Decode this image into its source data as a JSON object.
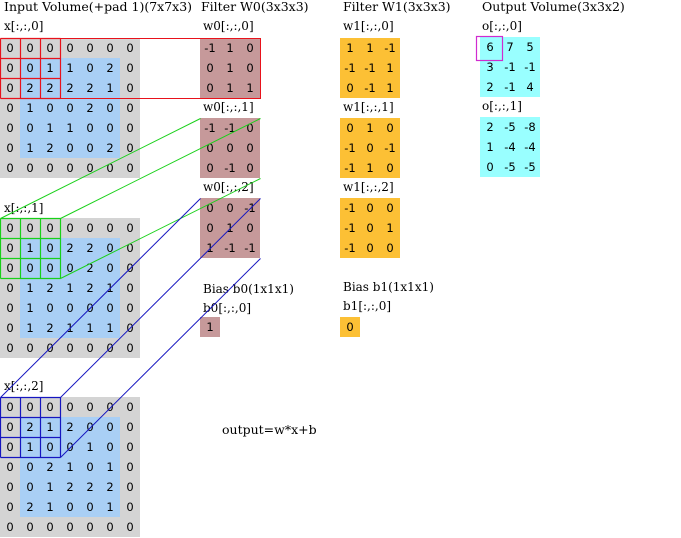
{
  "input": {
    "title": "Input Volume(+pad 1)(7x7x3)",
    "slices": [
      {
        "label": "x[:,:,0]",
        "values": [
          [
            0,
            0,
            0,
            0,
            0,
            0,
            0
          ],
          [
            0,
            0,
            1,
            1,
            0,
            2,
            0
          ],
          [
            0,
            2,
            2,
            2,
            2,
            1,
            0
          ],
          [
            0,
            1,
            0,
            0,
            2,
            0,
            0
          ],
          [
            0,
            0,
            1,
            1,
            0,
            0,
            0
          ],
          [
            0,
            1,
            2,
            0,
            0,
            2,
            0
          ],
          [
            0,
            0,
            0,
            0,
            0,
            0,
            0
          ]
        ]
      },
      {
        "label": "x[:,:,1]",
        "values": [
          [
            0,
            0,
            0,
            0,
            0,
            0,
            0
          ],
          [
            0,
            1,
            0,
            2,
            2,
            0,
            0
          ],
          [
            0,
            0,
            0,
            0,
            2,
            0,
            0
          ],
          [
            0,
            1,
            2,
            1,
            2,
            1,
            0
          ],
          [
            0,
            1,
            0,
            0,
            0,
            0,
            0
          ],
          [
            0,
            1,
            2,
            1,
            1,
            1,
            0
          ],
          [
            0,
            0,
            0,
            0,
            0,
            0,
            0
          ]
        ]
      },
      {
        "label": "x[:,:,2]",
        "values": [
          [
            0,
            0,
            0,
            0,
            0,
            0,
            0
          ],
          [
            0,
            2,
            1,
            2,
            0,
            0,
            0
          ],
          [
            0,
            1,
            0,
            0,
            1,
            0,
            0
          ],
          [
            0,
            0,
            2,
            1,
            0,
            1,
            0
          ],
          [
            0,
            0,
            1,
            2,
            2,
            2,
            0
          ],
          [
            0,
            2,
            1,
            0,
            0,
            1,
            0
          ],
          [
            0,
            0,
            0,
            0,
            0,
            0,
            0
          ]
        ]
      }
    ]
  },
  "filter_w0": {
    "title": "Filter W0(3x3x3)",
    "slices": [
      {
        "label": "w0[:,:,0]",
        "values": [
          [
            -1,
            1,
            0
          ],
          [
            0,
            1,
            0
          ],
          [
            0,
            1,
            1
          ]
        ]
      },
      {
        "label": "w0[:,:,1]",
        "values": [
          [
            -1,
            -1,
            0
          ],
          [
            0,
            0,
            0
          ],
          [
            0,
            -1,
            0
          ]
        ]
      },
      {
        "label": "w0[:,:,2]",
        "values": [
          [
            0,
            0,
            -1
          ],
          [
            0,
            1,
            0
          ],
          [
            1,
            -1,
            -1
          ]
        ]
      }
    ],
    "bias_title": "Bias b0(1x1x1)",
    "bias_label": "b0[:,:,0]",
    "bias_value": 1
  },
  "filter_w1": {
    "title": "Filter W1(3x3x3)",
    "slices": [
      {
        "label": "w1[:,:,0]",
        "values": [
          [
            1,
            1,
            -1
          ],
          [
            -1,
            -1,
            1
          ],
          [
            0,
            -1,
            1
          ]
        ]
      },
      {
        "label": "w1[:,:,1]",
        "values": [
          [
            0,
            1,
            0
          ],
          [
            -1,
            0,
            -1
          ],
          [
            -1,
            1,
            0
          ]
        ]
      },
      {
        "label": "w1[:,:,2]",
        "values": [
          [
            -1,
            0,
            0
          ],
          [
            -1,
            0,
            1
          ],
          [
            -1,
            0,
            0
          ]
        ]
      }
    ],
    "bias_title": "Bias b1(1x1x1)",
    "bias_label": "b1[:,:,0]",
    "bias_value": 0
  },
  "output": {
    "title": "Output Volume(3x3x2)",
    "slices": [
      {
        "label": "o[:,:,0]",
        "values": [
          [
            6,
            7,
            5
          ],
          [
            3,
            -1,
            -1
          ],
          [
            2,
            -1,
            4
          ]
        ]
      },
      {
        "label": "o[:,:,1]",
        "values": [
          [
            2,
            -5,
            -8
          ],
          [
            1,
            -4,
            -4
          ],
          [
            0,
            -5,
            -5
          ]
        ]
      }
    ]
  },
  "formula": "output=w*x+b",
  "colors": {
    "pad": "#d4d4d4",
    "inner": "#a9cff5",
    "filter_w0": "#c6999a",
    "filter_w1": "#fcc035",
    "output": "#99ffff",
    "highlight_slice0": "#e8121b",
    "highlight_slice1": "#19d019",
    "highlight_slice2": "#1616c0",
    "output_highlight": "#d02bd0"
  }
}
